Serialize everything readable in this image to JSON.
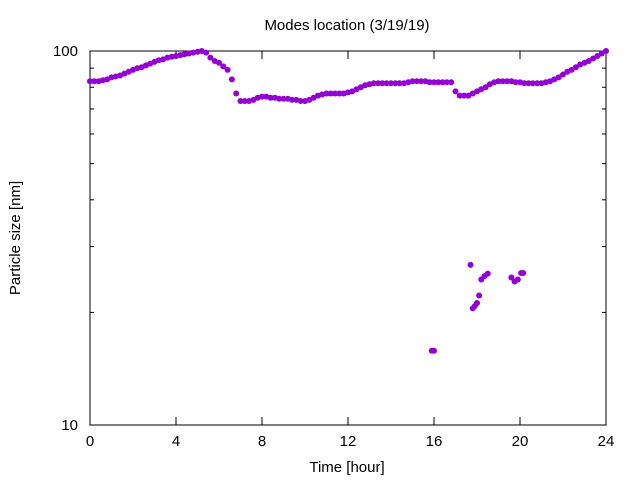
{
  "chart_data": {
    "type": "scatter",
    "title": "Modes location (3/19/19)",
    "xlabel": "Time [hour]",
    "ylabel": "Particle size [nm]",
    "xlim": [
      0,
      24
    ],
    "ylim": [
      10,
      100
    ],
    "yscale": "log",
    "x_ticks": [
      0,
      4,
      8,
      12,
      16,
      20,
      24
    ],
    "x_tick_labels": [
      "0",
      "4",
      "8",
      "12",
      "16",
      "20",
      "24"
    ],
    "y_ticks": [
      10,
      100
    ],
    "y_tick_labels": [
      "10",
      "100"
    ],
    "grid": false,
    "legend": "none",
    "marker_color": "#9400d3",
    "series": [
      {
        "x": [
          0.0,
          0.2,
          0.4,
          0.6,
          0.8,
          1.0,
          1.2,
          1.4,
          1.6,
          1.8,
          2.0,
          2.2,
          2.4,
          2.6,
          2.8,
          3.0,
          3.2,
          3.4,
          3.6,
          3.8,
          4.0,
          4.2,
          4.4,
          4.6,
          4.8,
          5.0,
          5.2,
          5.4,
          5.6,
          5.8,
          6.0,
          6.2,
          6.4,
          6.6,
          6.8,
          7.0,
          7.2,
          7.4,
          7.6,
          7.8,
          8.0,
          8.2,
          8.4,
          8.6,
          8.8,
          9.0,
          9.2,
          9.4,
          9.6,
          9.8,
          10.0,
          10.2,
          10.4,
          10.6,
          10.8,
          11.0,
          11.2,
          11.4,
          11.6,
          11.8,
          12.0,
          12.2,
          12.4,
          12.6,
          12.8,
          13.0,
          13.2,
          13.4,
          13.6,
          13.8,
          14.0,
          14.2,
          14.4,
          14.6,
          14.8,
          15.0,
          15.2,
          15.4,
          15.6,
          15.8,
          16.0,
          16.2,
          16.4,
          16.6,
          16.8,
          17.0,
          17.2,
          17.4,
          17.6,
          17.8,
          18.0,
          18.2,
          18.4,
          18.6,
          18.8,
          19.0,
          19.2,
          19.4,
          19.6,
          19.8,
          20.0,
          20.2,
          20.4,
          20.6,
          20.8,
          21.0,
          21.2,
          21.4,
          21.6,
          21.8,
          22.0,
          22.2,
          22.4,
          22.6,
          22.8,
          23.0,
          23.2,
          23.4,
          23.6,
          23.8,
          24.0
        ],
        "y": [
          83,
          83,
          83,
          83.5,
          84,
          85,
          85.5,
          86,
          87,
          88,
          89,
          90,
          90.5,
          91.5,
          92.5,
          93.5,
          94.5,
          95,
          96,
          96.5,
          97,
          97.5,
          98,
          98.5,
          99,
          99.5,
          100,
          99,
          96,
          94,
          93,
          91,
          89,
          84,
          77,
          73.5,
          73.5,
          73.5,
          74,
          75,
          75.5,
          75.5,
          75,
          75,
          74.5,
          74.5,
          74.5,
          74,
          74,
          73.5,
          73.5,
          74,
          75,
          76,
          76.5,
          77,
          77,
          77,
          77,
          77,
          77.5,
          78,
          79,
          80,
          81,
          81.5,
          82,
          82,
          82,
          82,
          82,
          82,
          82,
          82,
          82.5,
          83,
          83,
          83,
          83,
          82.5,
          82.5,
          82.5,
          82.5,
          82.5,
          82.5,
          78,
          76,
          76,
          76,
          77,
          78,
          79,
          80,
          81.5,
          82.5,
          83,
          83,
          83,
          83,
          82.5,
          82.5,
          82,
          82,
          82,
          82,
          82,
          82.5,
          83,
          84,
          85,
          86.5,
          88,
          89,
          90.5,
          92,
          93,
          94,
          95.5,
          97,
          98.5,
          100
        ]
      },
      {
        "x": [
          15.9,
          16.0,
          17.7,
          17.8,
          17.9,
          18.0,
          18.1,
          18.2,
          18.35,
          18.5,
          19.6,
          19.75,
          19.9,
          20.05,
          20.15
        ],
        "y": [
          15.8,
          15.8,
          26.8,
          20.5,
          20.8,
          21.2,
          22.2,
          24.5,
          25.0,
          25.4,
          24.8,
          24.2,
          24.5,
          25.5,
          25.5
        ]
      }
    ]
  }
}
